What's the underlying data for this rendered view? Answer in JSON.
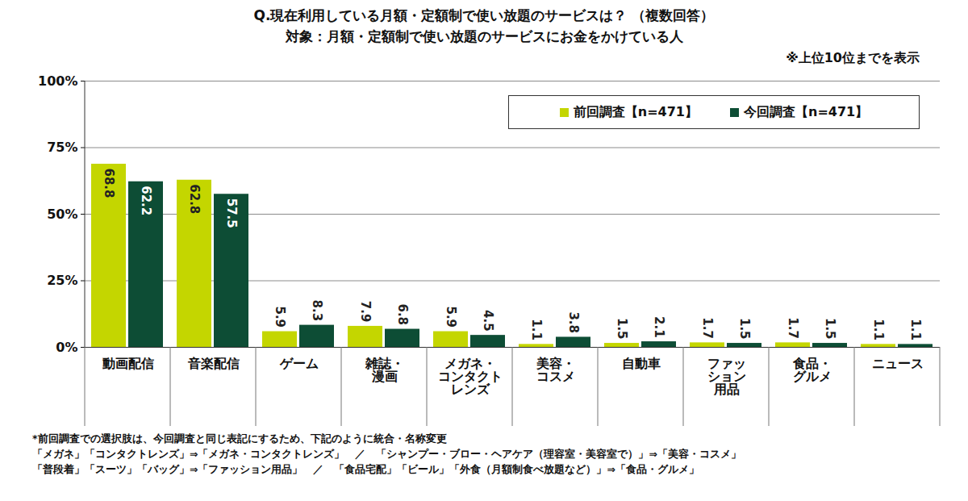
{
  "chart_data": {
    "type": "bar",
    "title": "Q.現在利用している月額・定額制で使い放題のサービスは？ （複数回答）",
    "subtitle": "対象：月額・定額制で使い放題のサービスにお金をかけている人",
    "annotations": [
      "※上位10位までを表示",
      "*前回調査での選択肢は、今回調査と同じ表記にするため、下記のように統合・名称変更",
      "「メガネ」「コンタクトレンズ」⇒「メガネ・コンタクトレンズ」　／　「シャンプー・ブロー・ヘアケア（理容室・美容室で）」⇒「美容・コスメ」",
      "「普段着」「スーツ」「バッグ」⇒「ファッション用品」　／　「食品宅配」「ビール」「外食（月額制食べ放題など）」⇒「食品・グルメ」"
    ],
    "categories": [
      "動画配信",
      "音楽配信",
      "ゲーム",
      "雑誌・\n漫画",
      "メガネ・\nコンタクト\nレンズ",
      "美容・\nコスメ",
      "自動車",
      "ファッ\nション\n用品",
      "食品・\nグルメ",
      "ニュース"
    ],
    "series": [
      {
        "name": "前回調査【n=471】",
        "color": "#c4d600",
        "values": [
          68.8,
          62.8,
          5.9,
          7.9,
          5.9,
          1.1,
          1.5,
          1.7,
          1.7,
          1.1
        ]
      },
      {
        "name": "今回調査【n=471】",
        "color": "#0d4d35",
        "values": [
          62.2,
          57.5,
          8.3,
          6.8,
          4.5,
          3.8,
          2.1,
          1.5,
          1.5,
          1.1
        ]
      }
    ],
    "ylim": [
      0,
      100
    ],
    "yticks": [
      {
        "value": 0,
        "label": "0%"
      },
      {
        "value": 25,
        "label": "25%"
      },
      {
        "value": 50,
        "label": "50%"
      },
      {
        "value": 75,
        "label": "75%"
      },
      {
        "value": 100,
        "label": "100%"
      }
    ],
    "grid": true,
    "legend": "top-right",
    "data_labels": true
  }
}
